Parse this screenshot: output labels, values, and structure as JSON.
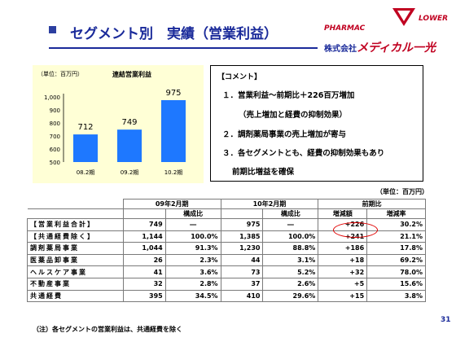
{
  "header": {
    "title_main": "セグメント別　実績",
    "title_paren": "（営業利益）",
    "logo_left": "PHARMAC",
    "logo_right": "LOWER",
    "company_prefix": "株式会社",
    "company_brand": "メディカル一光"
  },
  "chart_data": {
    "type": "bar",
    "title": "連結営業利益",
    "unit_label": "（単位：百万円）",
    "categories": [
      "08.2期",
      "09.2期",
      "10.2期"
    ],
    "values": [
      712,
      749,
      975
    ],
    "value_labels": [
      "712",
      "749",
      "975"
    ],
    "ylim": [
      500,
      1000
    ],
    "yticks": [
      "500",
      "600",
      "700",
      "800",
      "900",
      "1,000"
    ],
    "bar_color": "#1e78ff",
    "background": "#ffffd6"
  },
  "comment": {
    "heading": "【コメント】",
    "lines": [
      "１．営業利益～前期比＋226百万増加",
      "（売上増加と経費の抑制効果）",
      "２．調剤薬局事業の売上増加が寄与",
      "３．各セグメントとも、経費の抑制効果もあり",
      "前期比増益を確保"
    ]
  },
  "table": {
    "unit": "（単位：百万円）",
    "header1": [
      "09年2月期",
      "10年2月期",
      "前期比"
    ],
    "header2": [
      "構成比",
      "構成比",
      "増減額",
      "増減率"
    ],
    "rows": [
      {
        "name": "【営業利益合計】",
        "v1": "749",
        "r1": "―",
        "v2": "975",
        "r2": "―",
        "diff": "+226",
        "rate": "30.2%"
      },
      {
        "name": "【共通経費除く】",
        "v1": "1,144",
        "r1": "100.0%",
        "v2": "1,385",
        "r2": "100.0%",
        "diff": "+241",
        "rate": "21.1%"
      },
      {
        "name": "調剤薬局事業",
        "v1": "1,044",
        "r1": "91.3%",
        "v2": "1,230",
        "r2": "88.8%",
        "diff": "+186",
        "rate": "17.8%"
      },
      {
        "name": "医薬品卸事業",
        "v1": "26",
        "r1": "2.3%",
        "v2": "44",
        "r2": "3.1%",
        "diff": "+18",
        "rate": "69.2%"
      },
      {
        "name": "ヘルスケア事業",
        "v1": "41",
        "r1": "3.6%",
        "v2": "73",
        "r2": "5.2%",
        "diff": "+32",
        "rate": "78.0%"
      },
      {
        "name": "不動産事業",
        "v1": "32",
        "r1": "2.8%",
        "v2": "37",
        "r2": "2.6%",
        "diff": "+5",
        "rate": "15.6%"
      },
      {
        "name": "共通経費",
        "v1": "395",
        "r1": "34.5%",
        "v2": "410",
        "r2": "29.6%",
        "diff": "+15",
        "rate": "3.8%"
      }
    ],
    "highlight_color": "#ff0000"
  },
  "footnote": "（注）各セグメントの営業利益は、共通経費を除く",
  "page_number": "31"
}
